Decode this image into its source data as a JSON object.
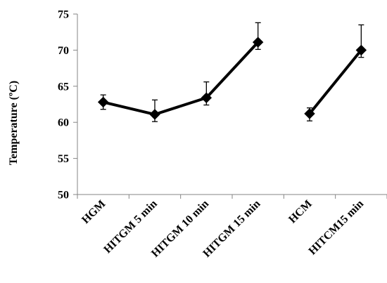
{
  "chart_data": {
    "type": "line",
    "title": "",
    "xlabel": "",
    "ylabel": "Temperature (ºC)",
    "ylim": [
      50,
      75
    ],
    "yticks": [
      50,
      55,
      60,
      65,
      70,
      75
    ],
    "grid": false,
    "categories": [
      "HGM",
      "HITGM 5 min",
      "HITGM 10 min",
      "HITGM 15 min",
      "HCM",
      "HITCM15 min"
    ],
    "series": [
      {
        "marker": "diamond",
        "color": "#000000",
        "values": [
          62.8,
          61.1,
          63.4,
          71.1,
          61.2,
          70.0
        ],
        "error": [
          [
            1.0,
            1.0
          ],
          [
            1.0,
            2.0
          ],
          [
            1.0,
            2.2
          ],
          [
            1.0,
            2.7
          ],
          [
            1.0,
            0.8
          ],
          [
            1.0,
            3.5
          ]
        ],
        "segments": [
          [
            0,
            3
          ],
          [
            4,
            5
          ]
        ]
      }
    ]
  }
}
